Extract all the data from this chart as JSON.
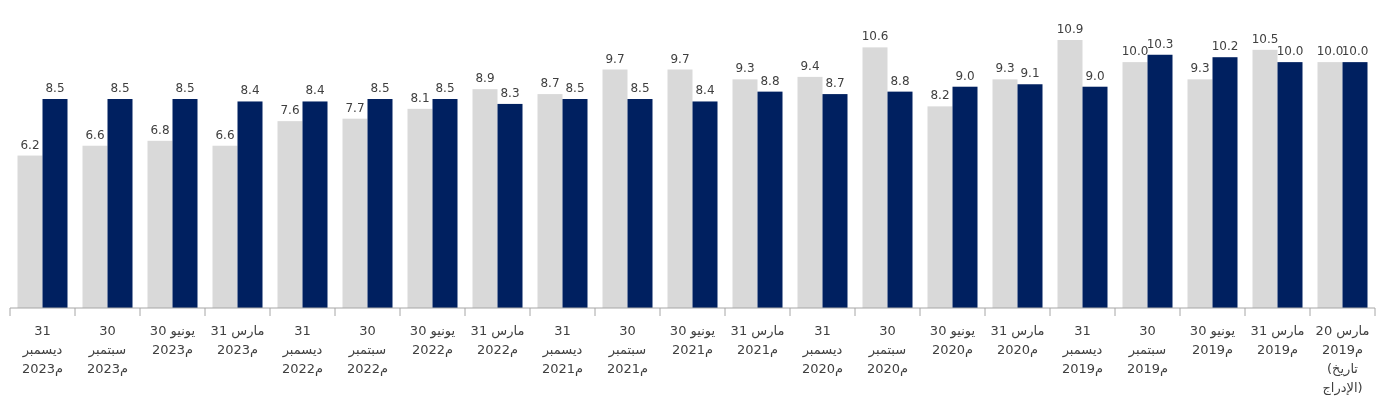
{
  "chart_data": {
    "type": "bar",
    "categories": [
      "31\nديسمبر\n2023م",
      "30\nسبتمبر\n2023م",
      "30 يونيو\n2023م",
      "31 مارس\n2023م",
      "31\nديسمبر\n2022م",
      "30\nسبتمبر\n2022م",
      "30 يونيو\n2022م",
      "31 مارس\n2022م",
      "31\nديسمبر\n2021م",
      "30\nسبتمبر\n2021م",
      "30 يونيو\n2021م",
      "31 مارس\n2021م",
      "31\nديسمبر\n2020م",
      "30\nسبتمبر\n2020م",
      "30 يونيو\n2020م",
      "31 مارس\n2020م",
      "31\nديسمبر\n2019م",
      "30\nسبتمبر\n2019م",
      "30 يونيو\n2019م",
      "31 مارس\n2019م",
      "20 مارس\n2019م\n(تاريخ\nالإدراج)"
    ],
    "series": [
      {
        "color": "#d9d9d9",
        "values": [
          6.2,
          6.6,
          6.8,
          6.6,
          7.6,
          7.7,
          8.1,
          8.9,
          8.7,
          9.7,
          9.7,
          9.3,
          9.4,
          10.6,
          8.2,
          9.3,
          10.9,
          10.0,
          9.3,
          10.5,
          10.0
        ],
        "value_labels": [
          "6.2",
          "6.6",
          "6.8",
          "6.6",
          "7.6",
          "7.7",
          "8.1",
          "8.9",
          "8.7",
          "9.7",
          "9.7",
          "9.3",
          "9.4",
          "10.6",
          "8.2",
          "9.3",
          "10.9",
          "10.0",
          "9.3",
          "10.5",
          "10.0"
        ]
      },
      {
        "color": "#002060",
        "values": [
          8.5,
          8.5,
          8.5,
          8.4,
          8.4,
          8.5,
          8.5,
          8.3,
          8.5,
          8.5,
          8.4,
          8.8,
          8.7,
          8.8,
          9.0,
          9.1,
          9.0,
          10.3,
          10.2,
          10.0,
          10.0
        ],
        "value_labels": [
          "8.5",
          "8.5",
          "8.5",
          "8.4",
          "8.4",
          "8.5",
          "8.5",
          "8.3",
          "8.5",
          "8.5",
          "8.4",
          "8.8",
          "8.7",
          "8.8",
          "9.0",
          "9.1",
          "9.0",
          "10.3",
          "10.2",
          "10.0",
          "10.0"
        ]
      }
    ]
  }
}
